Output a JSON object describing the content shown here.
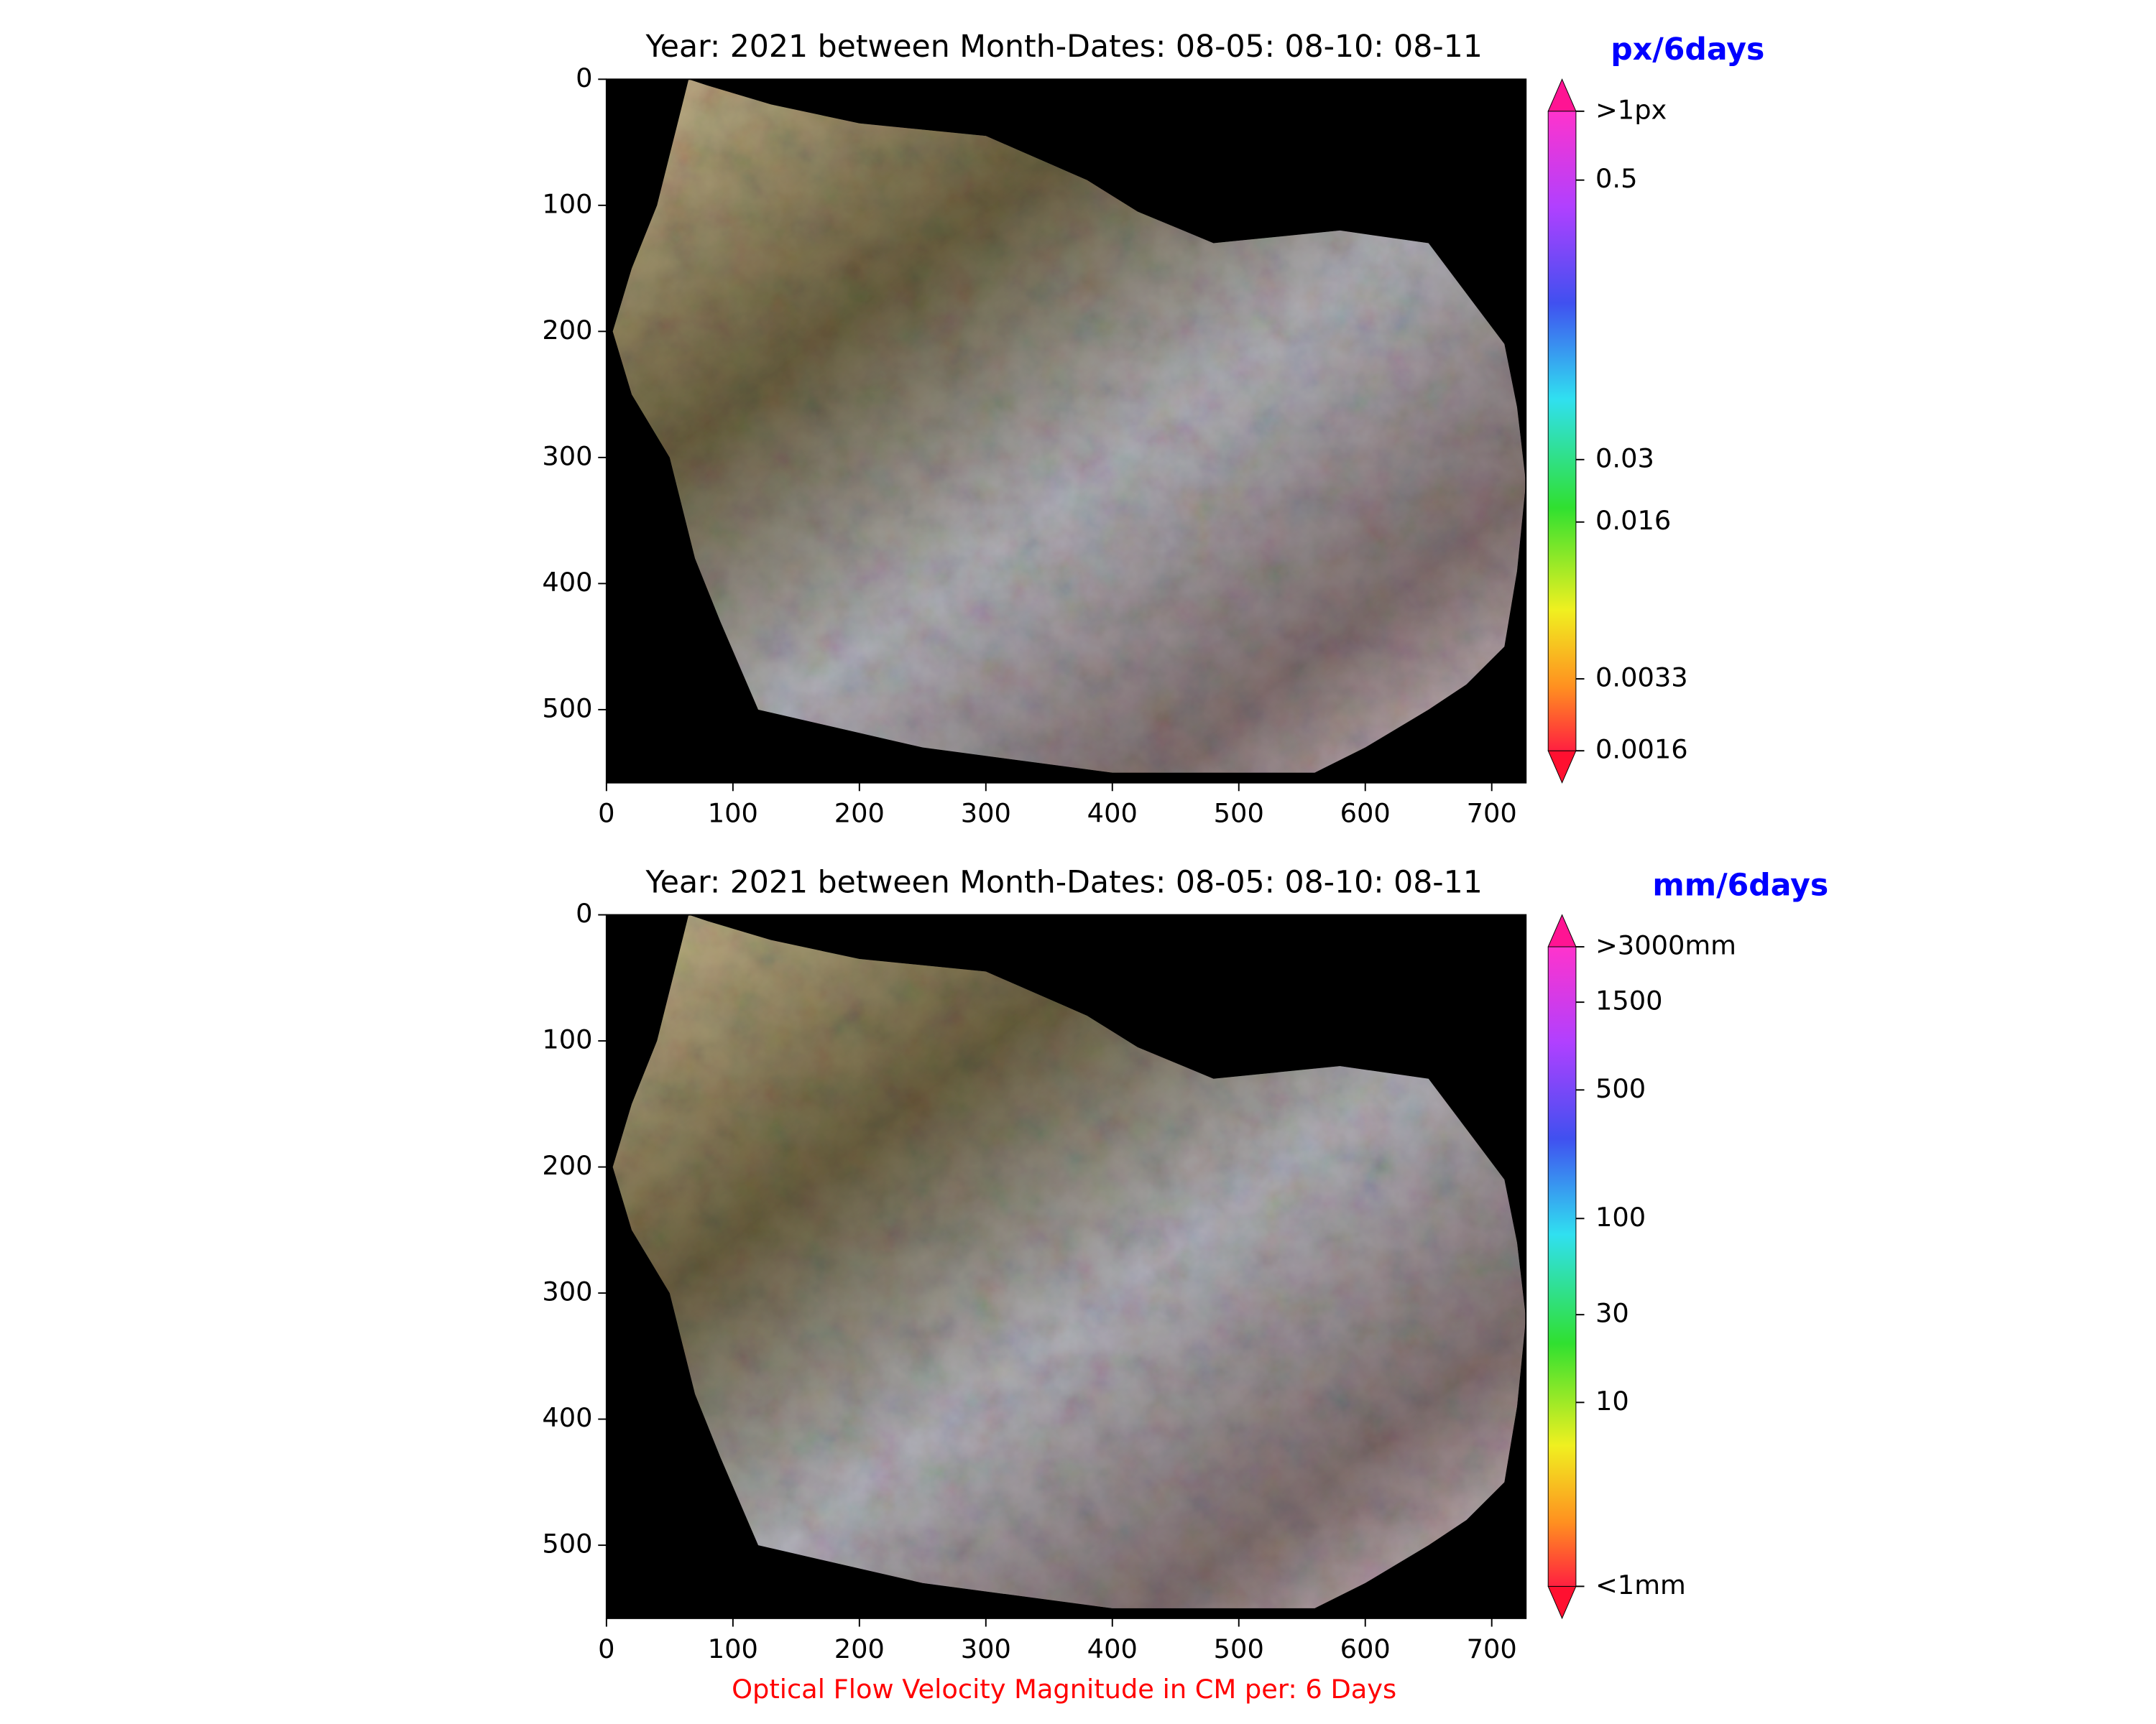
{
  "figure_caption": "Optical Flow Velocity Magnitude in CM per: 6 Days",
  "caption_color": "#ff0000",
  "chart_data": [
    {
      "type": "image",
      "title": "Year: 2021 between Month-Dates: 08-05: 08-10: 08-11",
      "xlim": [
        0,
        727
      ],
      "ylim": [
        558,
        0
      ],
      "xticks": [
        0,
        100,
        200,
        300,
        400,
        500,
        600,
        700
      ],
      "yticks": [
        0,
        100,
        200,
        300,
        400,
        500
      ],
      "colorbar": {
        "label": "px/6days",
        "label_color": "#0000ff",
        "scale": "log",
        "lim": [
          0.0016,
          1
        ],
        "ticks": [
          {
            "value": 1,
            "label": ">1px"
          },
          0.5,
          0.03,
          0.016,
          0.0033,
          0.0016
        ]
      }
    },
    {
      "type": "image",
      "title": "Year: 2021 between Month-Dates: 08-05: 08-10: 08-11",
      "xlim": [
        0,
        727
      ],
      "ylim": [
        558,
        0
      ],
      "xticks": [
        0,
        100,
        200,
        300,
        400,
        500,
        600,
        700
      ],
      "yticks": [
        0,
        100,
        200,
        300,
        400,
        500
      ],
      "colorbar": {
        "label": "mm/6days",
        "label_color": "#0000ff",
        "scale": "log",
        "lim": [
          1,
          3000
        ],
        "ticks": [
          {
            "value": 3000,
            "label": ">3000mm"
          },
          1500,
          500,
          100,
          30,
          10,
          {
            "value": 1,
            "label": "<1mm"
          }
        ]
      }
    }
  ]
}
